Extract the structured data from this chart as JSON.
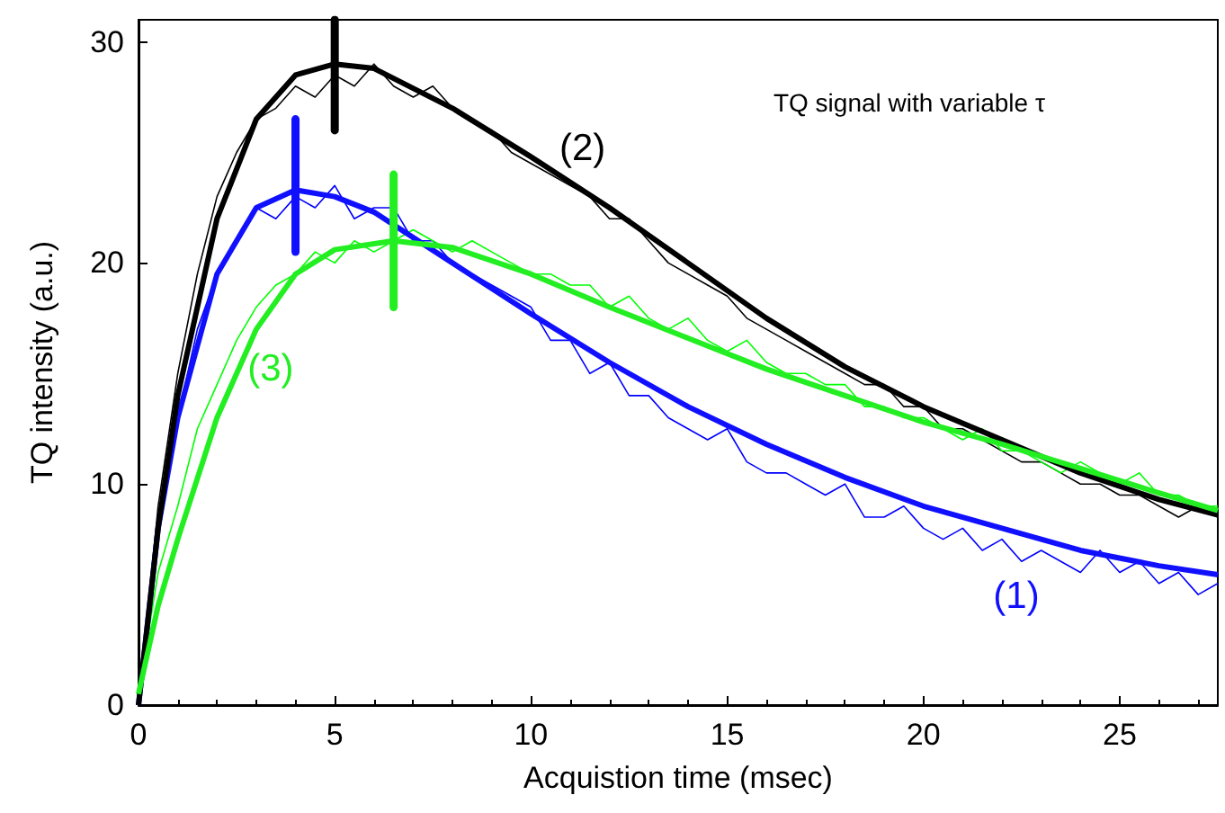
{
  "chart_data": {
    "type": "line",
    "xlabel": "Acquistion time (msec)",
    "ylabel": "TQ intensity (a.u.)",
    "xlim": [
      0,
      27.5
    ],
    "xticks": [
      0,
      5,
      10,
      15,
      20,
      25
    ],
    "ylim": [
      0,
      31
    ],
    "yticks": [
      0,
      10,
      20,
      30
    ],
    "grid": false,
    "marker": "none",
    "line_style": "solid",
    "annotations": [
      "TQ signal with variable τ"
    ],
    "series": [
      {
        "name": "(1)",
        "color": "#1010ff",
        "x": [
          0,
          0.5,
          1,
          2,
          3,
          4,
          5,
          6,
          8,
          10,
          12,
          14,
          16,
          18,
          20,
          22,
          24,
          26,
          27.5
        ],
        "values": [
          0,
          8,
          13,
          19.5,
          22.5,
          23.3,
          23,
          22.3,
          20,
          17.7,
          15.5,
          13.5,
          11.8,
          10.3,
          9,
          8,
          7,
          6.3,
          5.9
        ]
      },
      {
        "name": "(2)",
        "color": "#000000",
        "x": [
          0,
          0.5,
          1,
          2,
          3,
          4,
          5,
          6,
          8,
          10,
          12,
          14,
          16,
          18,
          20,
          22,
          24,
          26,
          27.5
        ],
        "values": [
          0,
          8,
          14,
          22,
          26.5,
          28.5,
          29,
          28.8,
          27,
          24.8,
          22.5,
          20,
          17.5,
          15.3,
          13.5,
          12,
          10.5,
          9.3,
          8.6
        ]
      },
      {
        "name": "(3)",
        "color": "#22ee22",
        "x": [
          0,
          0.5,
          1,
          2,
          3,
          4,
          5,
          6.5,
          8,
          10,
          12,
          14,
          16,
          18,
          20,
          22,
          24,
          26,
          27.5
        ],
        "values": [
          0.5,
          4.5,
          7.5,
          13,
          17,
          19.5,
          20.6,
          21,
          20.7,
          19.5,
          18,
          16.6,
          15.2,
          14,
          12.8,
          11.8,
          10.7,
          9.6,
          8.8
        ]
      },
      {
        "color": "#0000ff",
        "x": [
          0,
          0.5,
          1,
          1.5,
          2,
          2.5,
          3,
          3.5,
          4,
          4.5,
          5,
          5.5,
          6,
          6.5,
          7,
          7.5,
          8,
          8.5,
          9,
          9.5,
          10,
          10.5,
          11,
          11.5,
          12,
          12.5,
          13,
          13.5,
          14,
          14.5,
          15,
          15.5,
          16,
          16.5,
          17,
          17.5,
          18,
          18.5,
          19,
          19.5,
          20,
          20.5,
          21,
          21.5,
          22,
          22.5,
          23,
          23.5,
          24,
          24.5,
          25,
          25.5,
          26,
          26.5,
          27,
          27.5
        ],
        "values": [
          0,
          8,
          13,
          17,
          19.5,
          21,
          22.5,
          22,
          23,
          22.5,
          23.5,
          22,
          22.5,
          22.5,
          21,
          21,
          20,
          19.5,
          19,
          18.5,
          18,
          16.5,
          16.5,
          15,
          15.5,
          14,
          14,
          13,
          12.5,
          12,
          12.5,
          11,
          10.5,
          10.5,
          10,
          9.5,
          10,
          8.5,
          8.5,
          9,
          8,
          7.5,
          8,
          7,
          7.5,
          6.5,
          7,
          6.5,
          6,
          7,
          6,
          6.5,
          5.5,
          6,
          5,
          5.5
        ]
      },
      {
        "color": "#000000",
        "x": [
          0,
          0.5,
          1,
          1.5,
          2,
          2.5,
          3,
          3.5,
          4,
          4.5,
          5,
          5.5,
          6,
          6.5,
          7,
          7.5,
          8,
          8.5,
          9,
          9.5,
          10,
          10.5,
          11,
          11.5,
          12,
          12.5,
          13,
          13.5,
          14,
          14.5,
          15,
          15.5,
          16,
          16.5,
          17,
          17.5,
          18,
          18.5,
          19,
          19.5,
          20,
          20.5,
          21,
          21.5,
          22,
          22.5,
          23,
          23.5,
          24,
          24.5,
          25,
          25.5,
          26,
          26.5,
          27,
          27.5
        ],
        "values": [
          0,
          9,
          15,
          19.5,
          23,
          25,
          26.5,
          27,
          28,
          27.5,
          28.5,
          28,
          29,
          28,
          27.5,
          28,
          27,
          26.5,
          26,
          25,
          24.5,
          24,
          23.5,
          23,
          22,
          22,
          21,
          20,
          19.5,
          19,
          18.5,
          17.5,
          17,
          16.5,
          16,
          15.5,
          15,
          14.5,
          14.5,
          13.5,
          13.5,
          12.5,
          12.5,
          12,
          11.5,
          11,
          11,
          10.5,
          10,
          10,
          9.5,
          9.5,
          9,
          8.5,
          9,
          8.5
        ]
      },
      {
        "color": "#00ff00",
        "x": [
          0,
          0.5,
          1,
          1.5,
          2,
          2.5,
          3,
          3.5,
          4,
          4.5,
          5,
          5.5,
          6,
          6.5,
          7,
          7.5,
          8,
          8.5,
          9,
          9.5,
          10,
          10.5,
          11,
          11.5,
          12,
          12.5,
          13,
          13.5,
          14,
          14.5,
          15,
          15.5,
          16,
          16.5,
          17,
          17.5,
          18,
          18.5,
          19,
          19.5,
          20,
          20.5,
          21,
          21.5,
          22,
          22.5,
          23,
          23.5,
          24,
          24.5,
          25,
          25.5,
          26,
          26.5,
          27,
          27.5
        ],
        "values": [
          0.5,
          6,
          9,
          12.5,
          14.5,
          16.5,
          18,
          19,
          19.5,
          20.5,
          20,
          21,
          20.5,
          21,
          21.5,
          21,
          20.5,
          21,
          20.5,
          20,
          19.5,
          19.5,
          19,
          19,
          18,
          18.5,
          17.5,
          17,
          17.5,
          16.5,
          16,
          16.5,
          15.5,
          15,
          15,
          14.5,
          14.5,
          13.5,
          13.5,
          13,
          13,
          12.5,
          12,
          12.5,
          11.5,
          11.5,
          11,
          10.5,
          11,
          10.5,
          10,
          10.5,
          9.5,
          9.5,
          9,
          9
        ]
      },
      {
        "color": "#000000",
        "x": [
          5,
          5
        ],
        "values": [
          26,
          31
        ]
      },
      {
        "color": "#1010ff",
        "x": [
          4,
          4
        ],
        "values": [
          20.5,
          26.5
        ]
      },
      {
        "color": "#22ee22",
        "x": [
          6.5,
          6.5
        ],
        "values": [
          18,
          24
        ]
      }
    ]
  }
}
